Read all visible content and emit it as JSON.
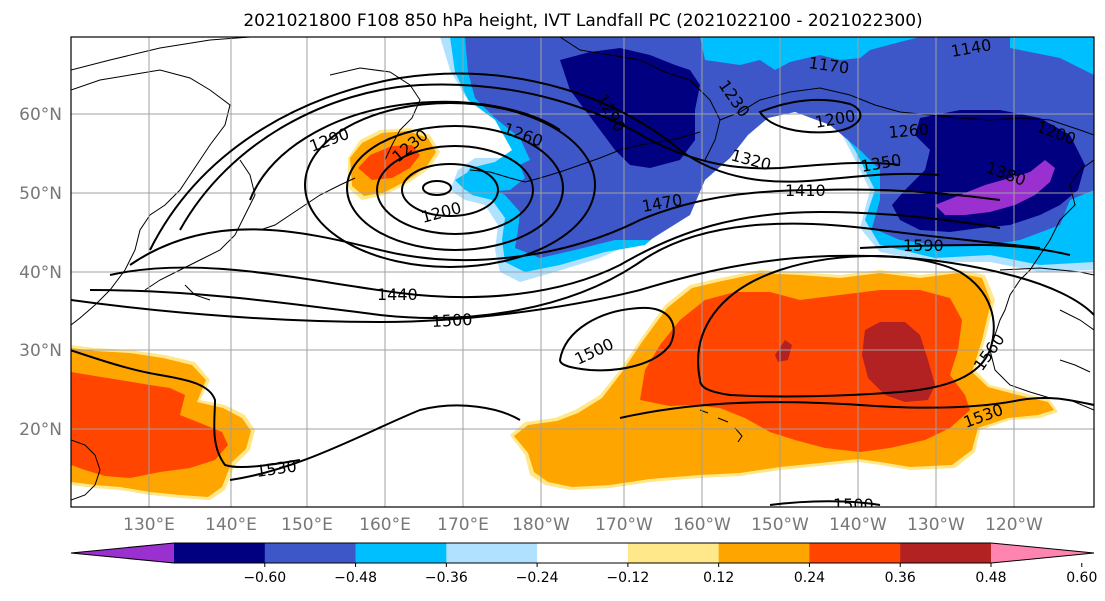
{
  "title": "2021021800 F108 850 hPa height, IVT Landfall PC (2021022100 - 2021022300)",
  "map": {
    "lat_ticks": [
      "60°N",
      "50°N",
      "40°N",
      "30°N",
      "20°N"
    ],
    "lon_ticks": [
      "130°E",
      "140°E",
      "150°E",
      "160°E",
      "170°E",
      "180°W",
      "170°W",
      "160°W",
      "150°W",
      "140°W",
      "130°W",
      "120°W"
    ]
  },
  "chart_data": {
    "type": "heatmap",
    "title": "2021021800 F108 850 hPa height, IVT Landfall PC (2021022100 - 2021022300)",
    "colorbar": {
      "bounds": [
        -0.6,
        -0.48,
        -0.36,
        -0.24,
        -0.12,
        0.12,
        0.24,
        0.36,
        0.48,
        0.6
      ],
      "labels": [
        "−0.60",
        "−0.48",
        "−0.36",
        "−0.24",
        "−0.12",
        "0.12",
        "0.24",
        "0.36",
        "0.48",
        "0.60"
      ],
      "colors": [
        "#9b30d0",
        "#000080",
        "#3e57c8",
        "#00bfff",
        "#b0e2ff",
        "#ffffff",
        "#ffe88a",
        "#ffa500",
        "#ff4500",
        "#b22222",
        "#ff85b0"
      ],
      "extend": "both"
    },
    "contour_labels": [
      "1140",
      "1170",
      "1230",
      "1290",
      "1230",
      "1260",
      "1200",
      "1260",
      "1290",
      "1200",
      "1320",
      "1350",
      "1380",
      "1410",
      "1470",
      "1590",
      "1440",
      "1500",
      "1500",
      "1560",
      "1530",
      "1530",
      "1500",
      "1200"
    ]
  }
}
